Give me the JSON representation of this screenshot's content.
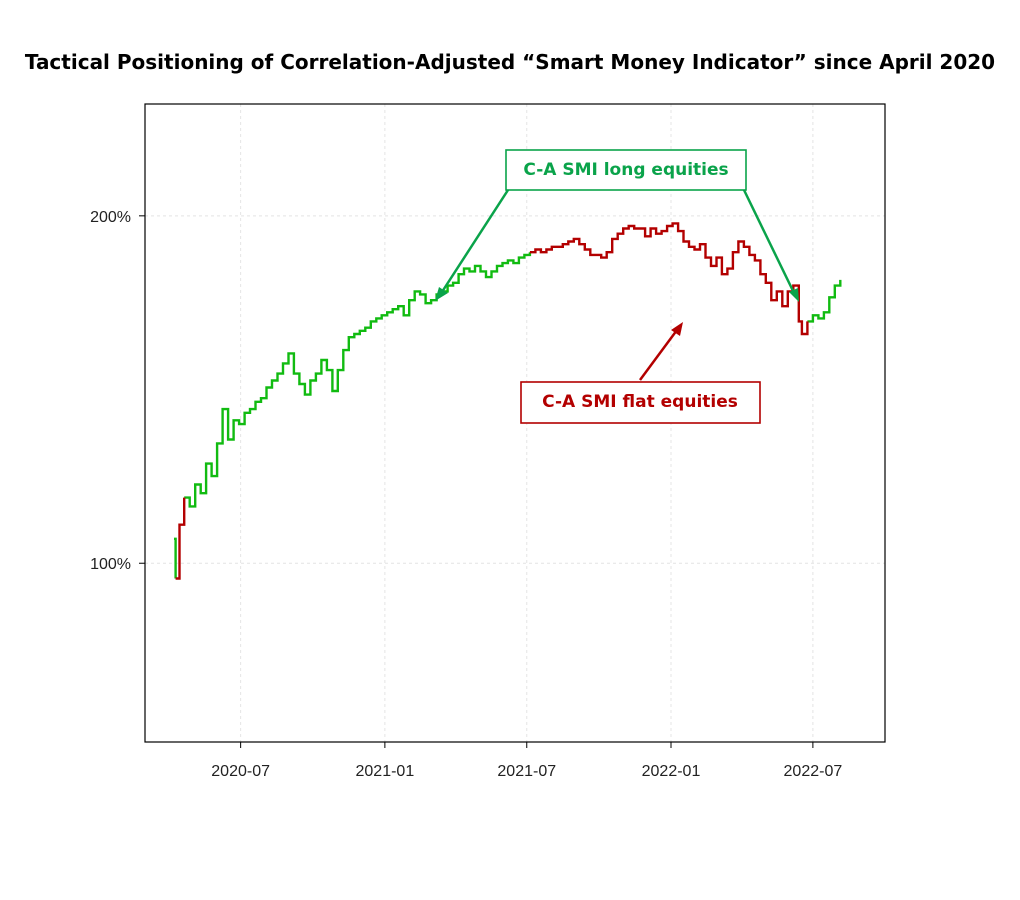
{
  "chart_data": {
    "type": "line",
    "title": "Tactical Positioning of Correlation-Adjusted “Smart Money Indicator” since April 2020",
    "xlabel": "",
    "ylabel": "",
    "y_scale": "log",
    "ylim": [
      0.7,
      2.5
    ],
    "xlim": [
      "2020-03-01",
      "2022-10-01"
    ],
    "grid": true,
    "y_ticks": [
      {
        "value": 1.0,
        "label": "100%"
      },
      {
        "value": 2.0,
        "label": "200%"
      }
    ],
    "x_ticks": [
      {
        "date": "2020-07-01",
        "label": "2020-07"
      },
      {
        "date": "2021-01-01",
        "label": "2021-01"
      },
      {
        "date": "2021-07-01",
        "label": "2021-07"
      },
      {
        "date": "2022-01-01",
        "label": "2022-01"
      },
      {
        "date": "2022-07-01",
        "label": "2022-07"
      }
    ],
    "series": [
      {
        "name": "C-A SMI long equities",
        "color": "#11bb11",
        "segments": [
          [
            [
              "2020-04-07",
              1.05
            ],
            [
              "2020-04-09",
              0.97
            ]
          ],
          [
            [
              "2020-04-20",
              1.14
            ],
            [
              "2020-04-27",
              1.12
            ],
            [
              "2020-05-04",
              1.17
            ],
            [
              "2020-05-11",
              1.15
            ],
            [
              "2020-05-18",
              1.22
            ],
            [
              "2020-05-25",
              1.19
            ],
            [
              "2020-06-01",
              1.27
            ],
            [
              "2020-06-08",
              1.36
            ],
            [
              "2020-06-15",
              1.28
            ],
            [
              "2020-06-22",
              1.33
            ],
            [
              "2020-06-29",
              1.32
            ],
            [
              "2020-07-06",
              1.35
            ],
            [
              "2020-07-13",
              1.36
            ],
            [
              "2020-07-20",
              1.38
            ],
            [
              "2020-07-27",
              1.39
            ],
            [
              "2020-08-03",
              1.42
            ],
            [
              "2020-08-10",
              1.44
            ],
            [
              "2020-08-17",
              1.46
            ],
            [
              "2020-08-24",
              1.49
            ],
            [
              "2020-08-31",
              1.52
            ],
            [
              "2020-09-07",
              1.46
            ],
            [
              "2020-09-14",
              1.43
            ],
            [
              "2020-09-21",
              1.4
            ],
            [
              "2020-09-28",
              1.44
            ],
            [
              "2020-10-05",
              1.46
            ],
            [
              "2020-10-12",
              1.5
            ],
            [
              "2020-10-19",
              1.47
            ],
            [
              "2020-10-26",
              1.41
            ],
            [
              "2020-11-02",
              1.47
            ],
            [
              "2020-11-09",
              1.53
            ],
            [
              "2020-11-16",
              1.57
            ],
            [
              "2020-11-23",
              1.58
            ],
            [
              "2020-11-30",
              1.59
            ],
            [
              "2020-12-07",
              1.6
            ],
            [
              "2020-12-14",
              1.62
            ],
            [
              "2020-12-21",
              1.63
            ],
            [
              "2020-12-28",
              1.64
            ],
            [
              "2021-01-04",
              1.65
            ],
            [
              "2021-01-11",
              1.66
            ],
            [
              "2021-01-18",
              1.67
            ],
            [
              "2021-01-25",
              1.64
            ],
            [
              "2021-02-01",
              1.69
            ],
            [
              "2021-02-08",
              1.72
            ],
            [
              "2021-02-15",
              1.71
            ],
            [
              "2021-02-22",
              1.68
            ],
            [
              "2021-03-01",
              1.69
            ],
            [
              "2021-03-08",
              1.71
            ],
            [
              "2021-03-15",
              1.72
            ],
            [
              "2021-03-22",
              1.74
            ],
            [
              "2021-03-29",
              1.75
            ],
            [
              "2021-04-05",
              1.78
            ],
            [
              "2021-04-12",
              1.8
            ],
            [
              "2021-04-19",
              1.79
            ],
            [
              "2021-04-26",
              1.81
            ],
            [
              "2021-05-03",
              1.79
            ],
            [
              "2021-05-10",
              1.77
            ],
            [
              "2021-05-17",
              1.79
            ],
            [
              "2021-05-24",
              1.81
            ],
            [
              "2021-05-31",
              1.82
            ],
            [
              "2021-06-07",
              1.83
            ],
            [
              "2021-06-14",
              1.82
            ],
            [
              "2021-06-21",
              1.84
            ],
            [
              "2021-06-28",
              1.85
            ],
            [
              "2021-07-05",
              1.86
            ]
          ],
          [
            [
              "2022-06-24",
              1.62
            ],
            [
              "2022-07-01",
              1.64
            ],
            [
              "2022-07-08",
              1.63
            ],
            [
              "2022-07-15",
              1.65
            ],
            [
              "2022-07-22",
              1.7
            ],
            [
              "2022-07-29",
              1.74
            ],
            [
              "2022-08-05",
              1.76
            ]
          ]
        ]
      },
      {
        "name": "C-A SMI flat equities",
        "color": "#b30000",
        "segments": [
          [
            [
              "2020-04-09",
              0.97
            ],
            [
              "2020-04-14",
              1.08
            ],
            [
              "2020-04-20",
              1.14
            ]
          ],
          [
            [
              "2021-07-05",
              1.86
            ],
            [
              "2021-07-12",
              1.87
            ],
            [
              "2021-07-19",
              1.86
            ],
            [
              "2021-07-26",
              1.87
            ],
            [
              "2021-08-02",
              1.88
            ],
            [
              "2021-08-09",
              1.88
            ],
            [
              "2021-08-16",
              1.89
            ],
            [
              "2021-08-23",
              1.9
            ],
            [
              "2021-08-30",
              1.91
            ],
            [
              "2021-09-06",
              1.89
            ],
            [
              "2021-09-13",
              1.87
            ],
            [
              "2021-09-20",
              1.85
            ],
            [
              "2021-09-27",
              1.85
            ],
            [
              "2021-10-04",
              1.84
            ],
            [
              "2021-10-11",
              1.86
            ],
            [
              "2021-10-18",
              1.91
            ],
            [
              "2021-10-25",
              1.93
            ],
            [
              "2021-11-01",
              1.95
            ],
            [
              "2021-11-08",
              1.96
            ],
            [
              "2021-11-15",
              1.95
            ],
            [
              "2021-11-22",
              1.95
            ],
            [
              "2021-11-29",
              1.92
            ],
            [
              "2021-12-06",
              1.95
            ],
            [
              "2021-12-13",
              1.93
            ],
            [
              "2021-12-20",
              1.94
            ],
            [
              "2021-12-27",
              1.96
            ],
            [
              "2022-01-03",
              1.97
            ],
            [
              "2022-01-10",
              1.94
            ],
            [
              "2022-01-17",
              1.9
            ],
            [
              "2022-01-24",
              1.88
            ],
            [
              "2022-01-31",
              1.87
            ],
            [
              "2022-02-07",
              1.89
            ],
            [
              "2022-02-14",
              1.84
            ],
            [
              "2022-02-21",
              1.81
            ],
            [
              "2022-02-28",
              1.84
            ],
            [
              "2022-03-07",
              1.78
            ],
            [
              "2022-03-14",
              1.8
            ],
            [
              "2022-03-21",
              1.86
            ],
            [
              "2022-03-28",
              1.9
            ],
            [
              "2022-04-04",
              1.88
            ],
            [
              "2022-04-11",
              1.85
            ],
            [
              "2022-04-18",
              1.83
            ],
            [
              "2022-04-25",
              1.78
            ],
            [
              "2022-05-02",
              1.75
            ],
            [
              "2022-05-09",
              1.69
            ],
            [
              "2022-05-16",
              1.72
            ],
            [
              "2022-05-23",
              1.67
            ],
            [
              "2022-05-30",
              1.72
            ],
            [
              "2022-06-06",
              1.74
            ],
            [
              "2022-06-13",
              1.62
            ],
            [
              "2022-06-17",
              1.58
            ],
            [
              "2022-06-24",
              1.62
            ]
          ]
        ]
      }
    ],
    "annotations": [
      {
        "text": "C-A SMI long equities",
        "color": "#0aa34a"
      },
      {
        "text": "C-A SMI flat equities",
        "color": "#b30000"
      }
    ]
  }
}
